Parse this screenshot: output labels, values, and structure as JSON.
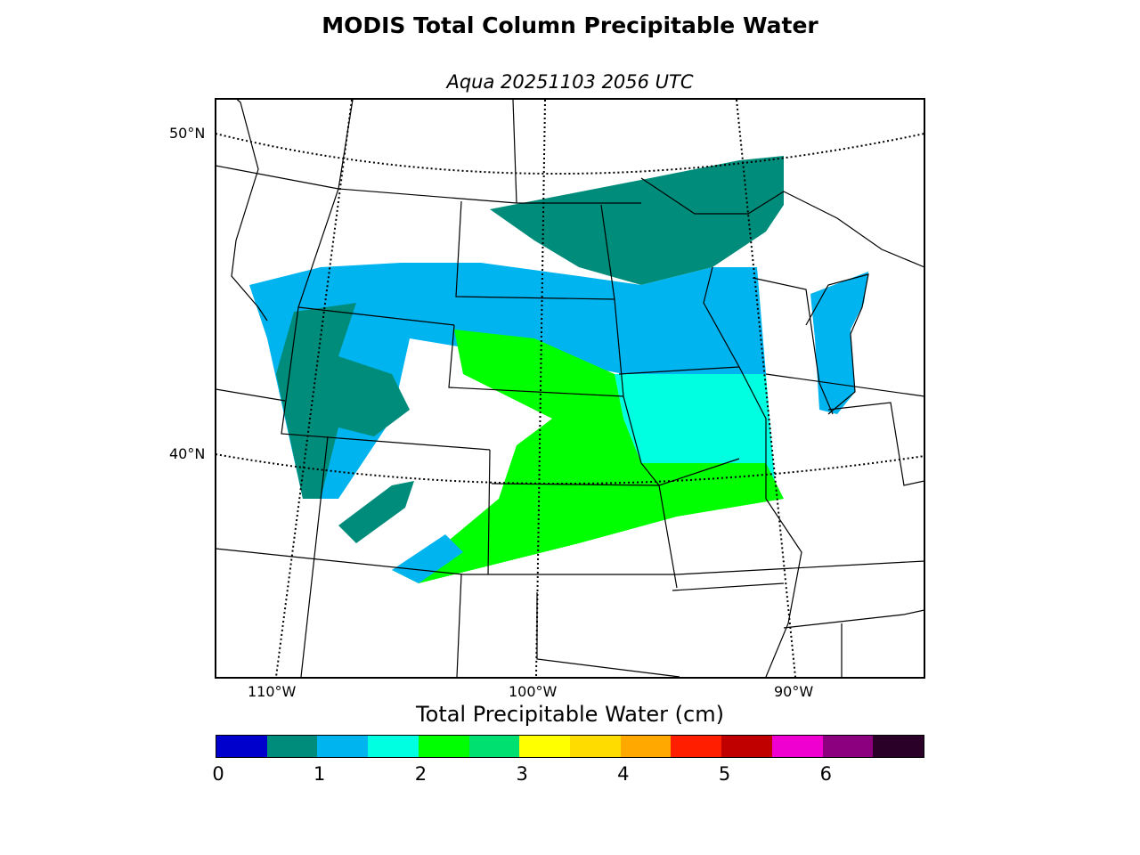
{
  "title": "MODIS Total Column Precipitable Water",
  "subtitle": "Aqua 20251103 2056 UTC",
  "map": {
    "lat_labels": [
      "50°N",
      "40°N"
    ],
    "lon_labels": [
      "110°W",
      "100°W",
      "90°W"
    ]
  },
  "colorbar": {
    "label": "Total Precipitable Water (cm)",
    "ticks": [
      "0",
      "1",
      "2",
      "3",
      "4",
      "5",
      "6"
    ],
    "range": [
      0,
      7
    ],
    "step": 0.5,
    "colors": [
      "#0000cc",
      "#008c7a",
      "#00b4f0",
      "#00ffe0",
      "#00ff00",
      "#00e070",
      "#ffff00",
      "#ffdc00",
      "#ffa800",
      "#ff1e00",
      "#c00000",
      "#f000d0",
      "#8c0080",
      "#2a0028"
    ]
  }
}
